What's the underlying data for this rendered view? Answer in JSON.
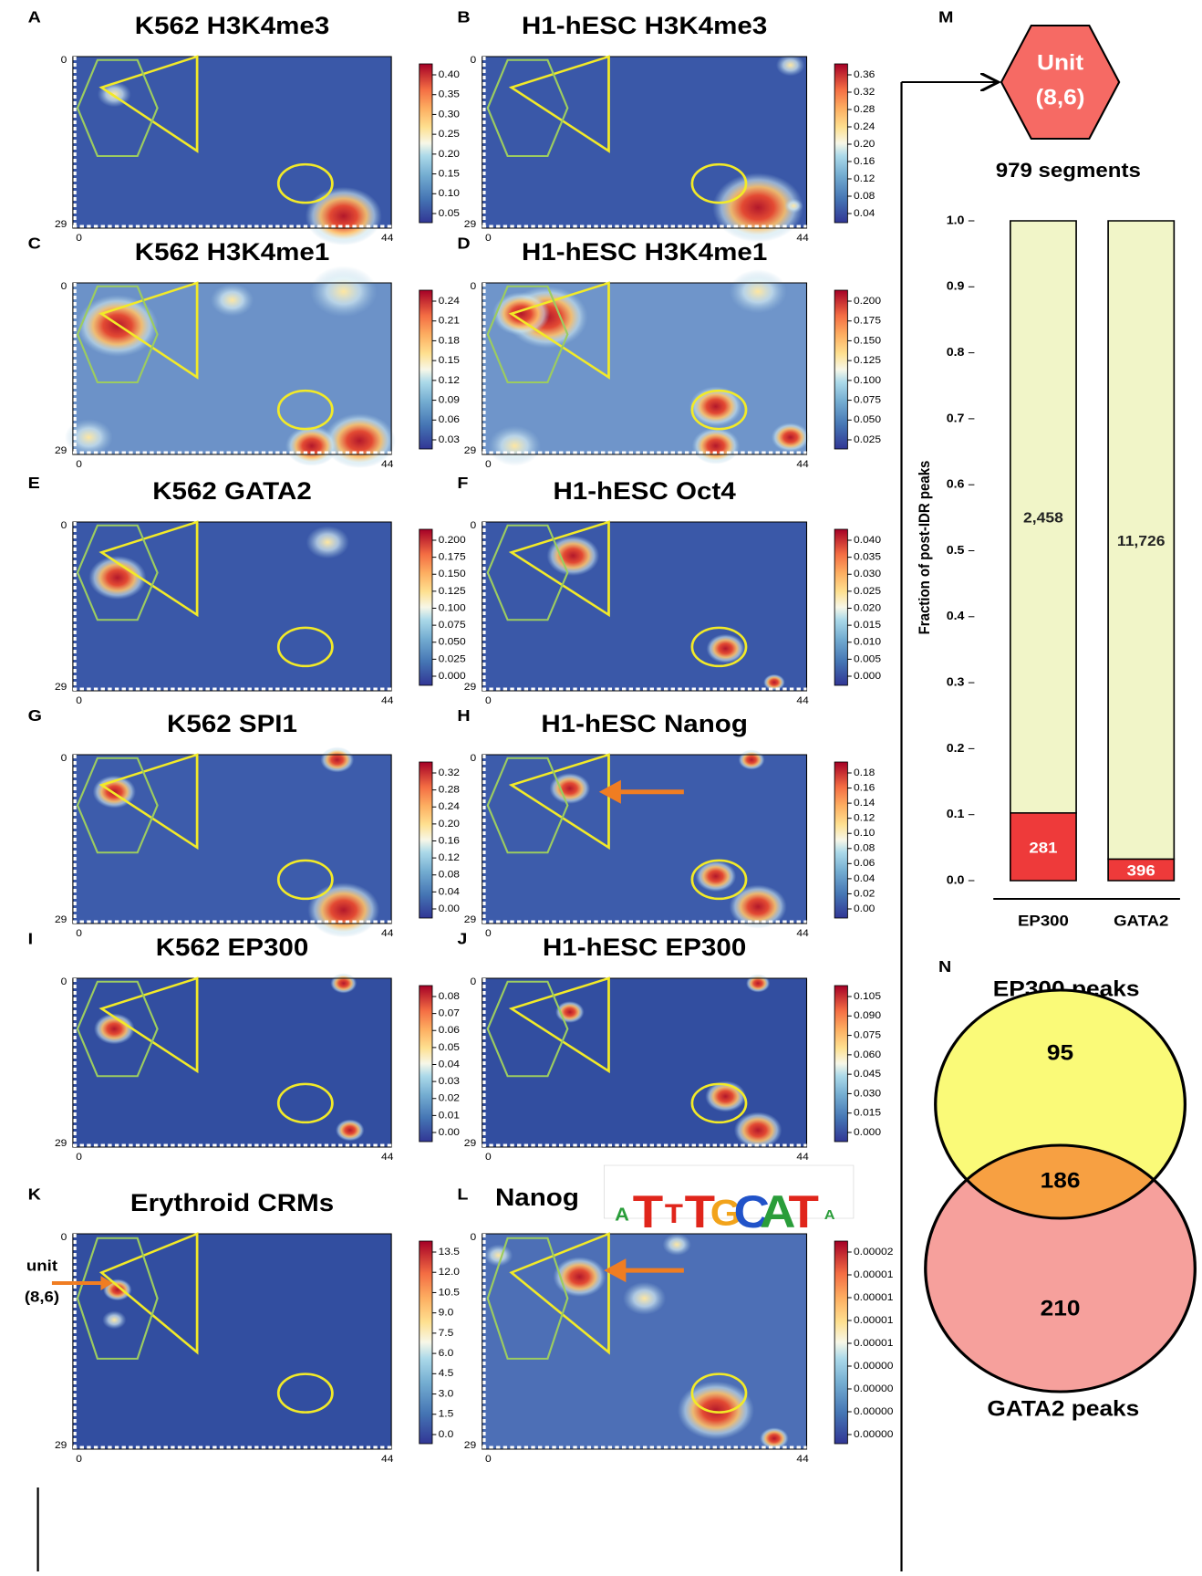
{
  "panels": [
    {
      "letter": "A",
      "title": "K562 H3K4me3",
      "colorbar_ticks": [
        "0.40",
        "0.35",
        "0.30",
        "0.25",
        "0.20",
        "0.15",
        "0.10",
        "0.05"
      ],
      "row_labels": [
        "0",
        "29"
      ],
      "col_labels": [
        "0",
        "44"
      ]
    },
    {
      "letter": "B",
      "title": "H1-hESC H3K4me3",
      "colorbar_ticks": [
        "0.36",
        "0.32",
        "0.28",
        "0.24",
        "0.20",
        "0.16",
        "0.12",
        "0.08",
        "0.04"
      ],
      "row_labels": [
        "0",
        "29"
      ],
      "col_labels": [
        "0",
        "44"
      ]
    },
    {
      "letter": "C",
      "title": "K562 H3K4me1",
      "colorbar_ticks": [
        "0.24",
        "0.21",
        "0.18",
        "0.15",
        "0.12",
        "0.09",
        "0.06",
        "0.03"
      ],
      "row_labels": [
        "0",
        "29"
      ],
      "col_labels": [
        "0",
        "44"
      ]
    },
    {
      "letter": "D",
      "title": "H1-hESC H3K4me1",
      "colorbar_ticks": [
        "0.200",
        "0.175",
        "0.150",
        "0.125",
        "0.100",
        "0.075",
        "0.050",
        "0.025"
      ],
      "row_labels": [
        "0",
        "29"
      ],
      "col_labels": [
        "0",
        "44"
      ]
    },
    {
      "letter": "E",
      "title": "K562 GATA2",
      "colorbar_ticks": [
        "0.200",
        "0.175",
        "0.150",
        "0.125",
        "0.100",
        "0.075",
        "0.050",
        "0.025",
        "0.000"
      ],
      "row_labels": [
        "0",
        "29"
      ],
      "col_labels": [
        "0",
        "44"
      ]
    },
    {
      "letter": "F",
      "title": "H1-hESC Oct4",
      "colorbar_ticks": [
        "0.040",
        "0.035",
        "0.030",
        "0.025",
        "0.020",
        "0.015",
        "0.010",
        "0.005",
        "0.000"
      ],
      "row_labels": [
        "0",
        "29"
      ],
      "col_labels": [
        "0",
        "44"
      ]
    },
    {
      "letter": "G",
      "title": "K562 SPI1",
      "colorbar_ticks": [
        "0.32",
        "0.28",
        "0.24",
        "0.20",
        "0.16",
        "0.12",
        "0.08",
        "0.04",
        "0.00"
      ],
      "row_labels": [
        "0",
        "29"
      ],
      "col_labels": [
        "0",
        "44"
      ]
    },
    {
      "letter": "H",
      "title": "H1-hESC Nanog",
      "colorbar_ticks": [
        "0.18",
        "0.16",
        "0.14",
        "0.12",
        "0.10",
        "0.08",
        "0.06",
        "0.04",
        "0.02",
        "0.00"
      ],
      "row_labels": [
        "0",
        "29"
      ],
      "col_labels": [
        "0",
        "44"
      ]
    },
    {
      "letter": "I",
      "title": "K562 EP300",
      "colorbar_ticks": [
        "0.08",
        "0.07",
        "0.06",
        "0.05",
        "0.04",
        "0.03",
        "0.02",
        "0.01",
        "0.00"
      ],
      "row_labels": [
        "0",
        "29"
      ],
      "col_labels": [
        "0",
        "44"
      ]
    },
    {
      "letter": "J",
      "title": "H1-hESC EP300",
      "colorbar_ticks": [
        "0.105",
        "0.090",
        "0.075",
        "0.060",
        "0.045",
        "0.030",
        "0.015",
        "0.000"
      ],
      "row_labels": [
        "0",
        "29"
      ],
      "col_labels": [
        "0",
        "44"
      ]
    },
    {
      "letter": "K",
      "title": "Erythroid CRMs",
      "colorbar_ticks": [
        "13.5",
        "12.0",
        "10.5",
        "9.0",
        "7.5",
        "6.0",
        "4.5",
        "3.0",
        "1.5",
        "0.0"
      ],
      "row_labels": [
        "0",
        "29"
      ],
      "col_labels": [
        "0",
        "44"
      ],
      "annotation": [
        "unit",
        "(8,6)"
      ]
    },
    {
      "letter": "L",
      "title": "Nanog",
      "colorbar_ticks": [
        "0.00002",
        "0.00001",
        "0.00001",
        "0.00001",
        "0.00001",
        "0.00000",
        "0.00000",
        "0.00000",
        "0.00000"
      ],
      "row_labels": [
        "0",
        "29"
      ],
      "col_labels": [
        "0",
        "44"
      ],
      "logo": [
        "A",
        "T",
        "T",
        "T",
        "G",
        "C",
        "A",
        "T",
        "A"
      ]
    }
  ],
  "unit_box": {
    "letter": "M",
    "lines": [
      "Unit",
      "(8,6)"
    ]
  },
  "chart_data": {
    "type": "bar",
    "stacked": true,
    "title": "979 segments",
    "y_label": "Fraction of post-IDR peaks",
    "categories": [
      "EP300",
      "GATA2"
    ],
    "series": [
      {
        "color": "#ee3a3a",
        "values": [
          0.1026,
          0.0327
        ],
        "value_labels": [
          "281",
          "396"
        ]
      },
      {
        "color": "#f1f5c8",
        "values": [
          0.8974,
          0.9673
        ],
        "value_labels": [
          "2,458",
          "11,726"
        ]
      }
    ],
    "ylim": [
      0,
      1
    ],
    "yticks": [
      {
        "value": 0,
        "label": "0.0"
      },
      {
        "value": 0.1,
        "label": "0.1"
      },
      {
        "value": 0.2,
        "label": "0.2"
      },
      {
        "value": 0.3,
        "label": "0.3"
      },
      {
        "value": 0.4,
        "label": "0.4"
      },
      {
        "value": 0.5,
        "label": "0.5"
      },
      {
        "value": 0.6,
        "label": "0.6"
      },
      {
        "value": 0.7,
        "label": "0.7"
      },
      {
        "value": 0.8,
        "label": "0.8"
      },
      {
        "value": 0.9,
        "label": "0.9"
      },
      {
        "value": 1,
        "label": "1.0"
      }
    ]
  },
  "venn": {
    "letter": "N",
    "top_label": "EP300 peaks",
    "bottom_label": "GATA2 peaks",
    "only_top": 95,
    "both": 186,
    "only_bottom": 210
  }
}
